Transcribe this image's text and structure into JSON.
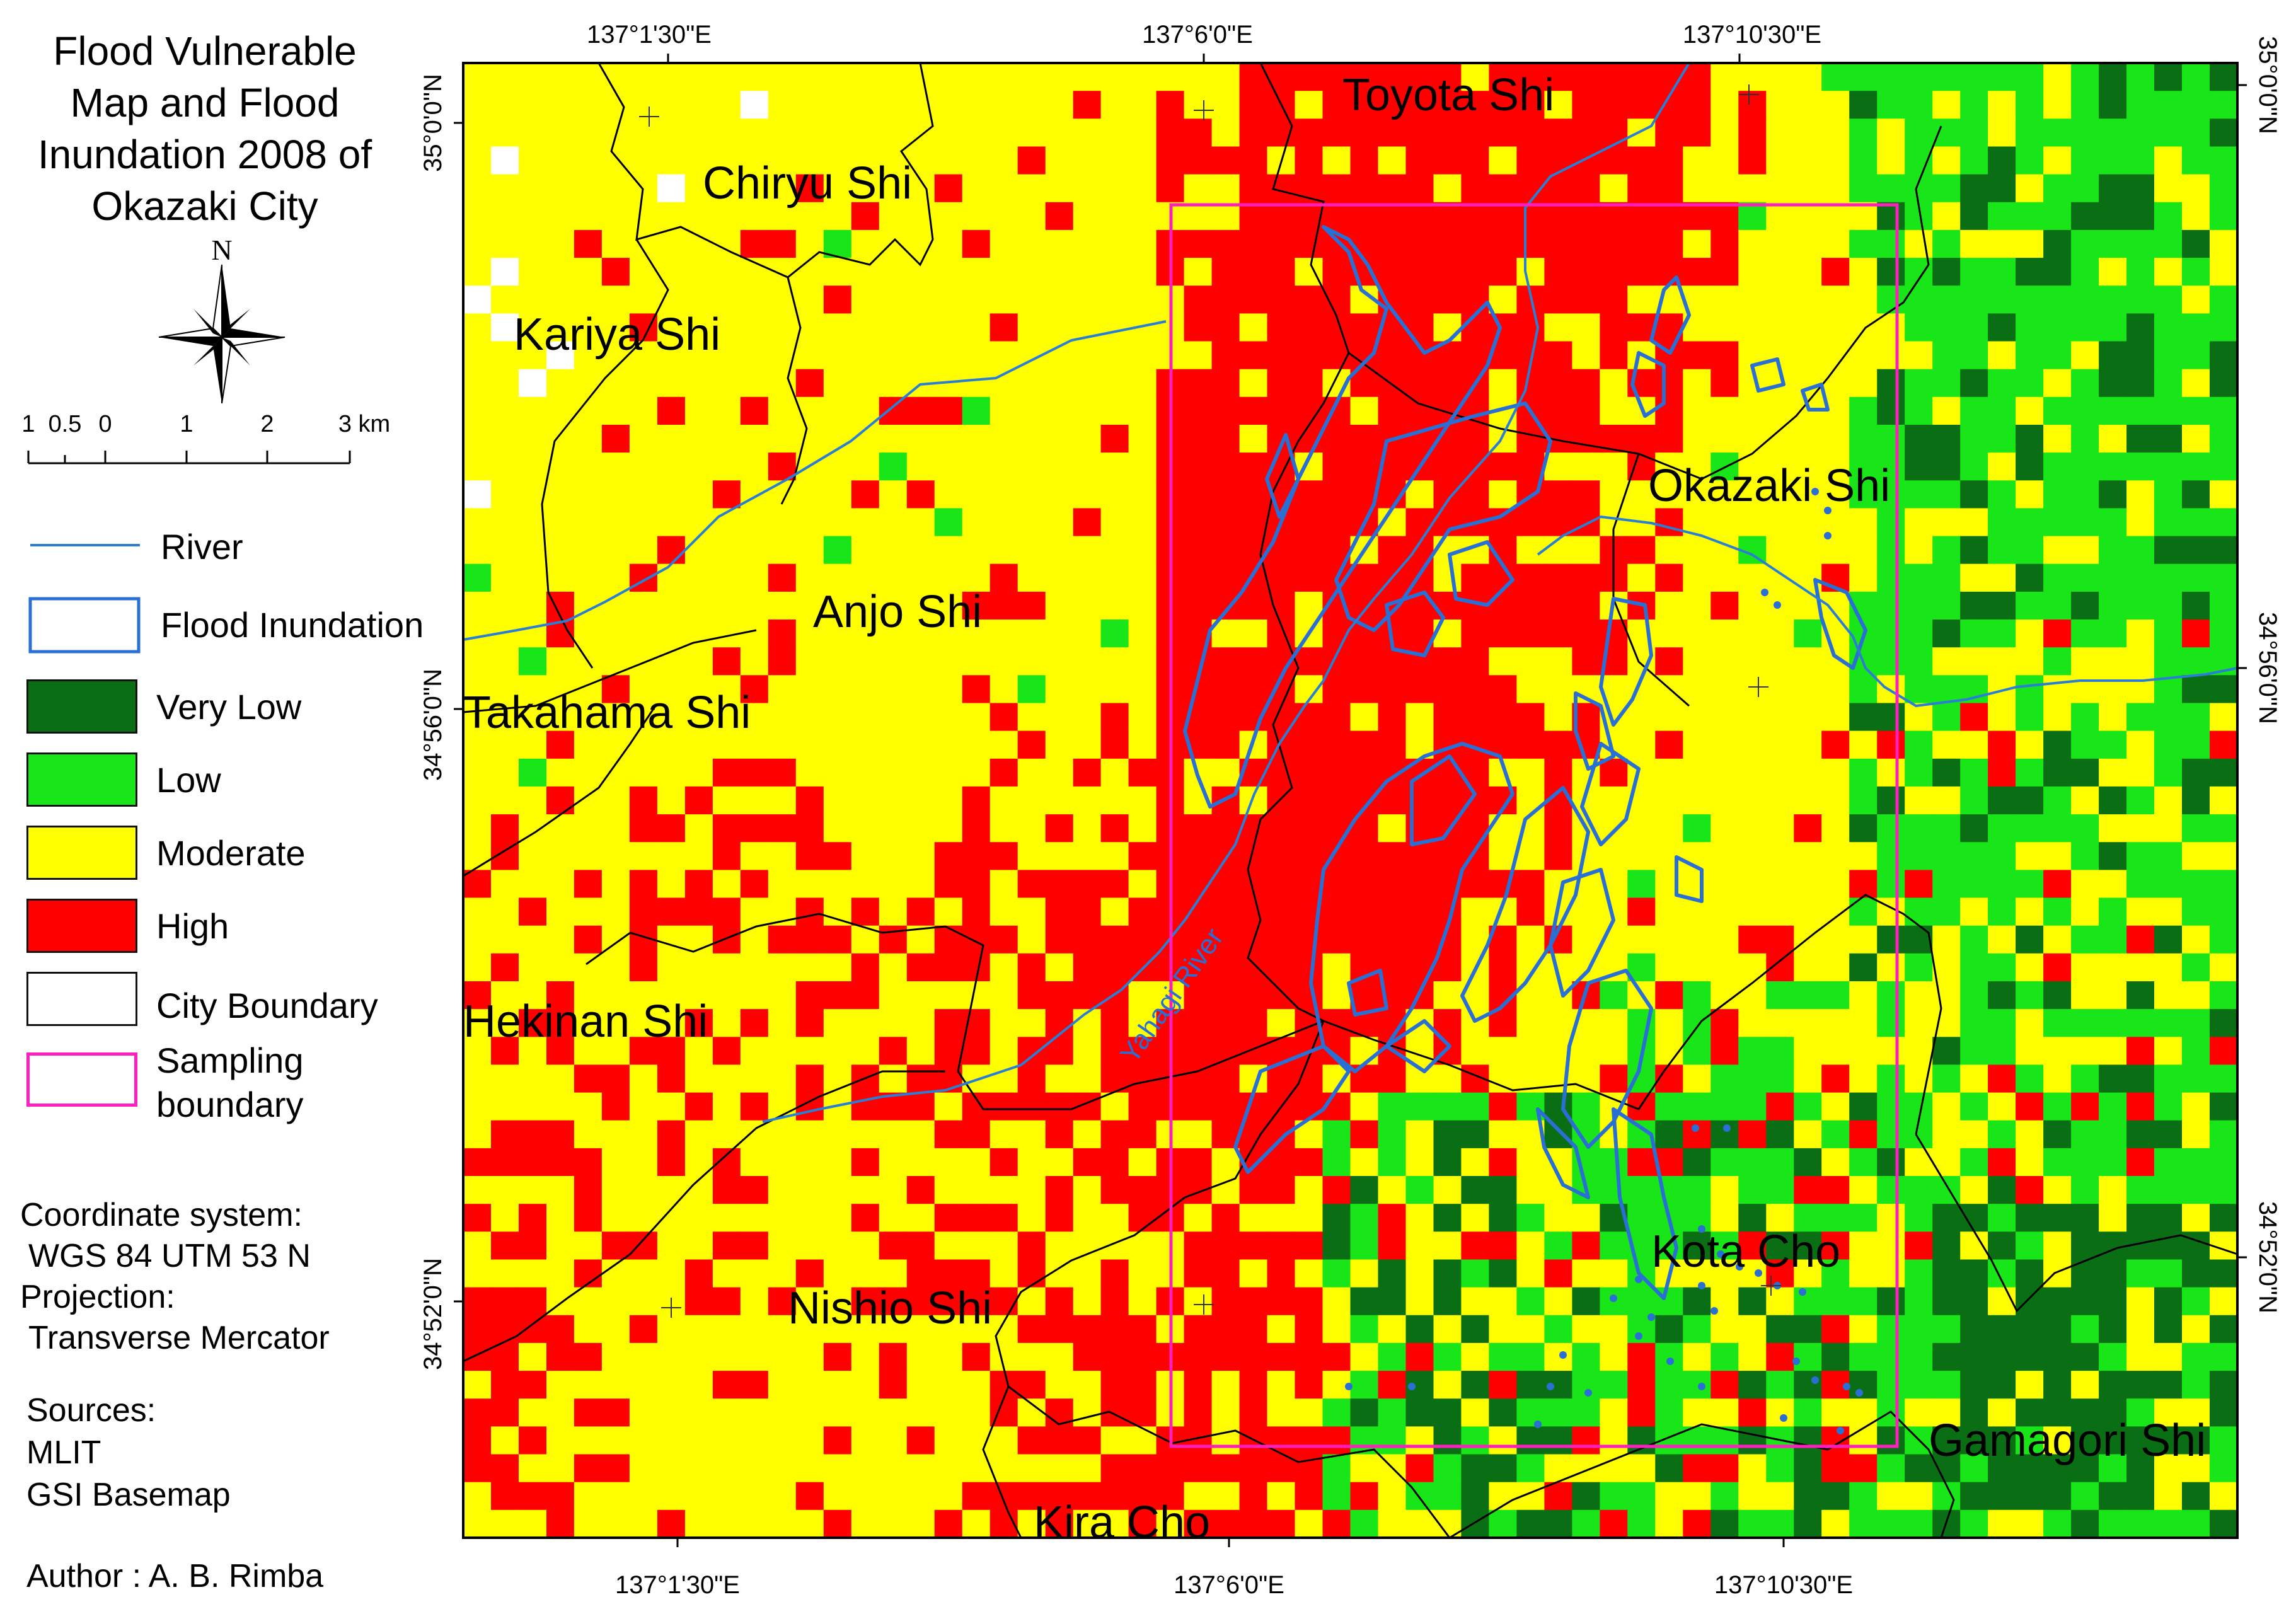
{
  "map": {
    "title": "Flood Vulnerable Map and Flood Inundation 2008 of Okazaki City",
    "north_label": "N",
    "scale_bar": {
      "labels": [
        "1",
        "0.5",
        "0",
        "1",
        "2",
        "3 km"
      ]
    },
    "legend": [
      {
        "label": "River",
        "color": "#2a7fd4",
        "kind": "line"
      },
      {
        "label": "Flood Inundation",
        "color": "#2a6fd4",
        "kind": "outline"
      },
      {
        "label": "Very Low",
        "color": "#0a6e14",
        "kind": "fill"
      },
      {
        "label": "Low",
        "color": "#19e619",
        "kind": "fill"
      },
      {
        "label": "Moderate",
        "color": "#ffff00",
        "kind": "fill"
      },
      {
        "label": "High",
        "color": "#ff0000",
        "kind": "fill"
      },
      {
        "label": "City Boundary",
        "color": "#000000",
        "kind": "outline"
      },
      {
        "label": "Sampling boundary",
        "color": "#ff1fbf",
        "kind": "outline"
      }
    ],
    "legend_sampling_lines": [
      "Sampling",
      "boundary"
    ],
    "coordinate_system_label": "Coordinate system:",
    "coordinate_system": "WGS 84 UTM 53 N",
    "projection_label": "Projection:",
    "projection": "Transverse Mercator",
    "sources_label": "Sources:",
    "sources": [
      "MLIT",
      "GSI Basemap"
    ],
    "author": "Author : A. B. Rimba",
    "top_ticks": [
      "137°1'30\"E",
      "137°6'0\"E",
      "137°10'30\"E"
    ],
    "bottom_ticks": [
      "137°1'30\"E",
      "137°6'0\"E",
      "137°10'30\"E"
    ],
    "left_ticks": [
      "35°0'0\"N",
      "34°56'0\"N",
      "34°52'0\"N"
    ],
    "right_ticks": [
      "35°0'0\"N",
      "34°56'0\"N",
      "34°52'0\"N"
    ],
    "place_names": [
      "Toyota Shi",
      "Chiryu Shi",
      "Kariya Shi",
      "Okazaki Shi",
      "Anjo Shi",
      "Takahama Shi",
      "Hekinan Shi",
      "Nishio Shi",
      "Kota Cho",
      "Gamagori Shi",
      "Kira Cho"
    ],
    "river_label": "Yahagi River"
  }
}
